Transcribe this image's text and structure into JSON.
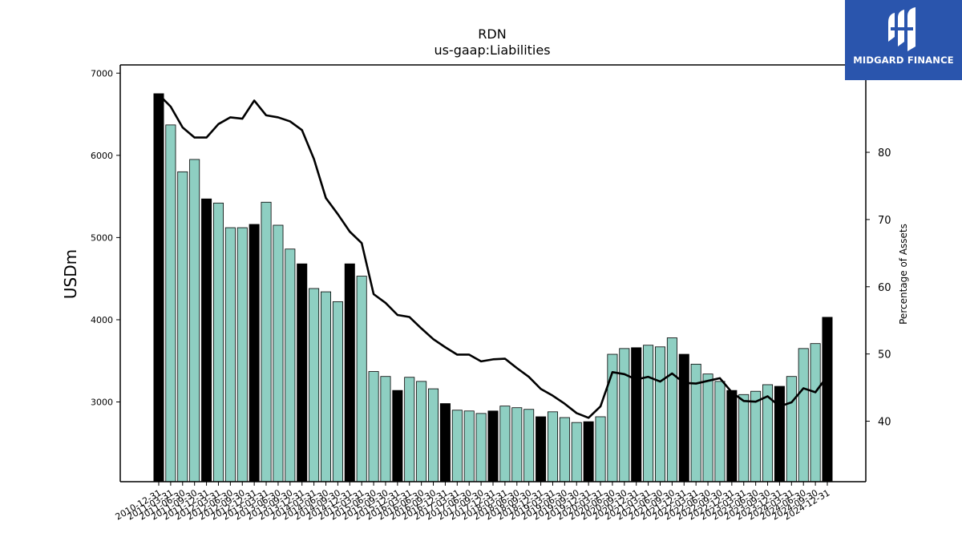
{
  "brand": {
    "name": "MIDGARD FINANCE",
    "bg_color": "#2a55ad"
  },
  "chart_data": {
    "type": "bar",
    "title": "RDN",
    "subtitle": "us-gaap:Liabilities",
    "ylabel": "USDm",
    "y2label": "Percentage of Assets",
    "ylim": [
      2030,
      7100
    ],
    "y2lim": [
      31,
      93
    ],
    "yticks": [
      3000,
      4000,
      5000,
      6000,
      7000
    ],
    "y2ticks": [
      40,
      50,
      60,
      70,
      80
    ],
    "grid": false,
    "colors": {
      "annual": "#000000",
      "quarterly": "#8ecfc2",
      "line": "#000000"
    },
    "categories": [
      "2010-12-31",
      "2011-03-31",
      "2011-06-30",
      "2011-09-30",
      "2011-12-31",
      "2012-03-31",
      "2012-06-30",
      "2012-09-30",
      "2012-12-31",
      "2013-03-31",
      "2013-06-30",
      "2013-09-30",
      "2013-12-31",
      "2014-03-31",
      "2014-06-30",
      "2014-09-30",
      "2014-12-31",
      "2015-03-31",
      "2015-06-30",
      "2015-09-30",
      "2015-12-31",
      "2016-03-31",
      "2016-06-30",
      "2016-09-30",
      "2016-12-31",
      "2017-03-31",
      "2017-06-30",
      "2017-09-30",
      "2017-12-31",
      "2018-03-31",
      "2018-06-30",
      "2018-09-30",
      "2018-12-31",
      "2019-03-31",
      "2019-06-30",
      "2019-09-30",
      "2019-12-31",
      "2020-03-31",
      "2020-06-30",
      "2020-09-30",
      "2020-12-31",
      "2021-03-31",
      "2021-06-30",
      "2021-09-30",
      "2021-12-31",
      "2022-03-31",
      "2022-06-30",
      "2022-09-30",
      "2022-12-31",
      "2023-03-31",
      "2023-06-30",
      "2023-09-30",
      "2023-12-31",
      "2024-03-31",
      "2024-06-30",
      "2024-09-30",
      "2024-12-31"
    ],
    "annual_flags": [
      true,
      false,
      false,
      false,
      true,
      false,
      false,
      false,
      true,
      false,
      false,
      false,
      true,
      false,
      false,
      false,
      true,
      false,
      false,
      false,
      true,
      false,
      false,
      false,
      true,
      false,
      false,
      false,
      true,
      false,
      false,
      false,
      true,
      false,
      false,
      false,
      true,
      false,
      false,
      false,
      true,
      false,
      false,
      false,
      true,
      false,
      false,
      false,
      true,
      false,
      false,
      false,
      true,
      false,
      false,
      false,
      true
    ],
    "series": [
      {
        "name": "Liabilities",
        "unit": "USDm",
        "axis": "left",
        "values": [
          6750,
          6370,
          5800,
          5950,
          5470,
          5420,
          5120,
          5120,
          5160,
          5430,
          5150,
          4860,
          4680,
          4380,
          4340,
          4220,
          4680,
          4530,
          3370,
          3310,
          3140,
          3300,
          3250,
          3160,
          2980,
          2900,
          2890,
          2860,
          2890,
          2950,
          2930,
          2910,
          2820,
          2880,
          2810,
          2750,
          2760,
          2820,
          3580,
          3650,
          3660,
          3690,
          3670,
          3780,
          3580,
          3460,
          3340,
          3250,
          3140,
          3090,
          3130,
          3210,
          3190,
          3310,
          3650,
          3710,
          4030
        ]
      },
      {
        "name": "Percentage of Assets",
        "unit": "%",
        "axis": "right",
        "values": [
          88.6,
          86.8,
          83.7,
          82.2,
          82.2,
          84.2,
          85.2,
          85.0,
          87.7,
          85.5,
          85.2,
          84.6,
          83.3,
          79.0,
          73.2,
          70.8,
          68.2,
          66.5,
          58.9,
          57.6,
          55.8,
          55.5,
          53.8,
          52.2,
          51.0,
          49.9,
          49.9,
          48.9,
          49.2,
          49.3,
          47.9,
          46.6,
          44.8,
          43.8,
          42.6,
          41.2,
          40.5,
          42.2,
          47.3,
          47.0,
          46.2,
          46.6,
          45.9,
          47.1,
          45.7,
          45.6,
          46.0,
          46.4,
          44.3,
          43.0,
          42.9,
          43.7,
          42.2,
          42.8,
          44.9,
          44.3,
          46.7
        ]
      }
    ]
  }
}
